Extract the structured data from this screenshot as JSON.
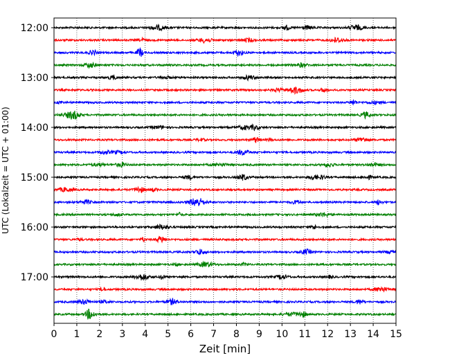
{
  "chart_data": {
    "type": "line",
    "title": "",
    "xlabel": "Zeit  [min]",
    "ylabel": "UTC (Lokalzeit = UTC + 01:00)",
    "xlim": [
      0,
      15
    ],
    "x_ticks": [
      "0",
      "1",
      "2",
      "3",
      "4",
      "5",
      "6",
      "7",
      "8",
      "9",
      "10",
      "11",
      "12",
      "13",
      "14",
      "15"
    ],
    "y_tick_labels": [
      "12:00",
      "13:00",
      "14:00",
      "15:00",
      "16:00",
      "17:00"
    ],
    "grid": "vertical dotted lines at each minute",
    "trace_interval_min": 15,
    "first_trace": "12:00",
    "trace_count": 24,
    "colors_cycle": [
      "#000000",
      "#ff0000",
      "#0000ff",
      "#008000"
    ]
  }
}
